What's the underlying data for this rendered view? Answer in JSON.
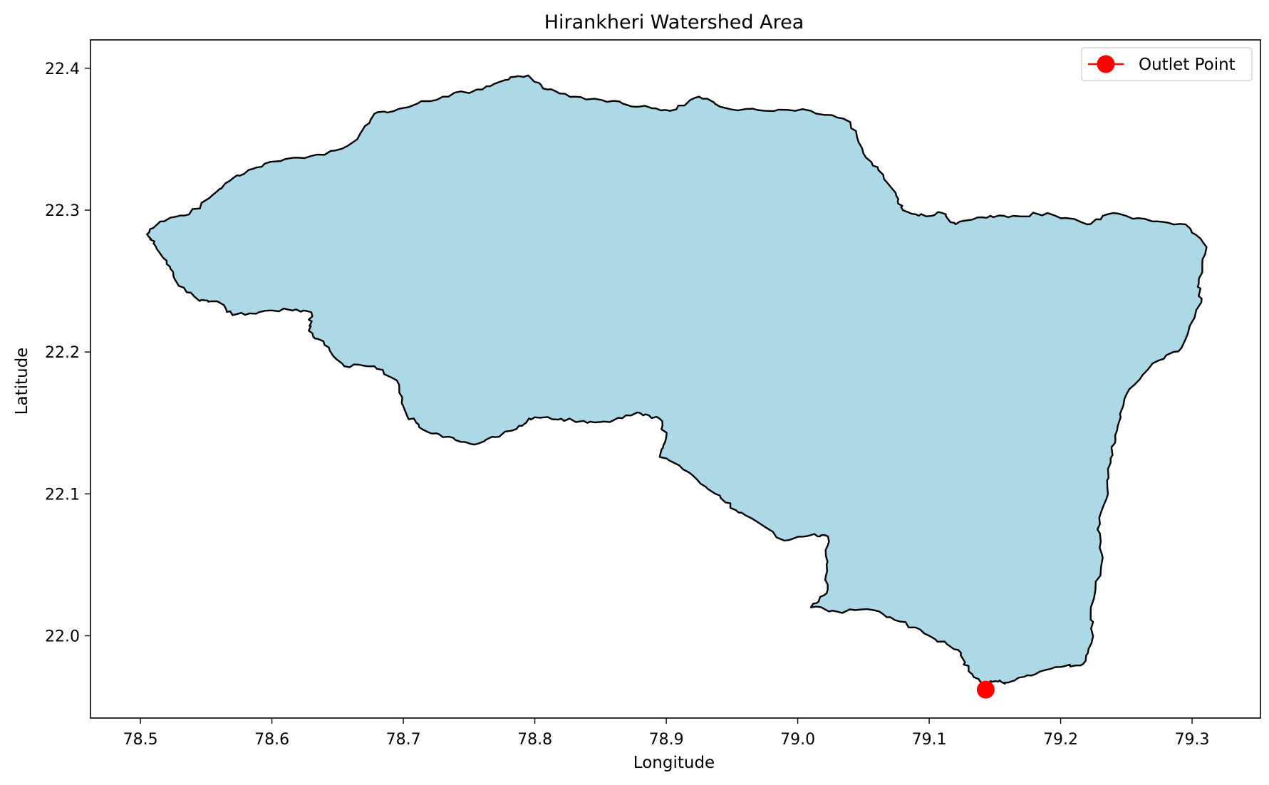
{
  "chart_data": {
    "type": "map",
    "title": "Hirankheri Watershed Area",
    "xlabel": "Longitude",
    "ylabel": "Latitude",
    "xlim": [
      78.462,
      79.352
    ],
    "ylim": [
      21.942,
      22.42
    ],
    "x_ticks": [
      78.5,
      78.6,
      78.7,
      78.8,
      78.9,
      79.0,
      79.1,
      79.2,
      79.3
    ],
    "x_tick_labels": [
      "78.5",
      "78.6",
      "78.7",
      "78.8",
      "78.9",
      "79.0",
      "79.1",
      "79.2",
      "79.3"
    ],
    "y_ticks": [
      22.0,
      22.1,
      22.2,
      22.3,
      22.4
    ],
    "y_tick_labels": [
      "22.0",
      "22.1",
      "22.2",
      "22.3",
      "22.4"
    ],
    "grid": false,
    "legend": {
      "position": "top-right",
      "entries": [
        {
          "label": "Outlet Point",
          "color": "#ff0000",
          "marker": "circle-line"
        }
      ]
    },
    "watershed": {
      "name": "Hirankheri Watershed",
      "fill_color": "#add8e6",
      "edge_color": "#000000",
      "boundary": [
        [
          78.505,
          22.283
        ],
        [
          78.515,
          22.292
        ],
        [
          78.537,
          22.297
        ],
        [
          78.558,
          22.313
        ],
        [
          78.571,
          22.323
        ],
        [
          78.588,
          22.33
        ],
        [
          78.61,
          22.336
        ],
        [
          78.64,
          22.339
        ],
        [
          78.665,
          22.35
        ],
        [
          78.678,
          22.368
        ],
        [
          78.7,
          22.372
        ],
        [
          78.73,
          22.38
        ],
        [
          78.76,
          22.385
        ],
        [
          78.78,
          22.392
        ],
        [
          78.795,
          22.395
        ],
        [
          78.81,
          22.385
        ],
        [
          78.83,
          22.38
        ],
        [
          78.86,
          22.377
        ],
        [
          78.88,
          22.373
        ],
        [
          78.903,
          22.37
        ],
        [
          78.925,
          22.38
        ],
        [
          78.945,
          22.372
        ],
        [
          78.975,
          22.37
        ],
        [
          79.01,
          22.37
        ],
        [
          79.04,
          22.362
        ],
        [
          79.05,
          22.34
        ],
        [
          79.065,
          22.325
        ],
        [
          79.075,
          22.31
        ],
        [
          79.08,
          22.3
        ],
        [
          79.092,
          22.296
        ],
        [
          79.11,
          22.298
        ],
        [
          79.12,
          22.29
        ],
        [
          79.14,
          22.295
        ],
        [
          79.16,
          22.295
        ],
        [
          79.19,
          22.298
        ],
        [
          79.22,
          22.29
        ],
        [
          79.24,
          22.298
        ],
        [
          79.27,
          22.292
        ],
        [
          79.295,
          22.29
        ],
        [
          79.311,
          22.274
        ],
        [
          79.305,
          22.248
        ],
        [
          79.307,
          22.235
        ],
        [
          79.292,
          22.203
        ],
        [
          79.27,
          22.192
        ],
        [
          79.25,
          22.17
        ],
        [
          79.243,
          22.145
        ],
        [
          79.238,
          22.125
        ],
        [
          79.236,
          22.1
        ],
        [
          79.228,
          22.075
        ],
        [
          79.232,
          22.055
        ],
        [
          79.223,
          22.02
        ],
        [
          79.224,
          21.997
        ],
        [
          79.217,
          21.98
        ],
        [
          79.2,
          21.978
        ],
        [
          79.178,
          21.972
        ],
        [
          79.16,
          21.967
        ],
        [
          79.15,
          21.968
        ],
        [
          79.143,
          21.965
        ],
        [
          79.13,
          21.975
        ],
        [
          79.122,
          21.99
        ],
        [
          79.1,
          22.0
        ],
        [
          79.078,
          22.01
        ],
        [
          79.058,
          22.018
        ],
        [
          79.03,
          22.017
        ],
        [
          79.01,
          22.02
        ],
        [
          79.022,
          22.03
        ],
        [
          79.022,
          22.05
        ],
        [
          79.023,
          22.07
        ],
        [
          79.01,
          22.071
        ],
        [
          78.99,
          22.067
        ],
        [
          78.96,
          22.085
        ],
        [
          78.945,
          22.094
        ],
        [
          78.93,
          22.105
        ],
        [
          78.91,
          22.12
        ],
        [
          78.895,
          22.126
        ],
        [
          78.9,
          22.14
        ],
        [
          78.895,
          22.153
        ],
        [
          78.88,
          22.157
        ],
        [
          78.86,
          22.152
        ],
        [
          78.84,
          22.15
        ],
        [
          78.82,
          22.153
        ],
        [
          78.8,
          22.154
        ],
        [
          78.788,
          22.148
        ],
        [
          78.77,
          22.14
        ],
        [
          78.752,
          22.135
        ],
        [
          78.73,
          22.14
        ],
        [
          78.712,
          22.147
        ],
        [
          78.702,
          22.157
        ],
        [
          78.695,
          22.18
        ],
        [
          78.678,
          22.19
        ],
        [
          78.655,
          22.19
        ],
        [
          78.64,
          22.205
        ],
        [
          78.628,
          22.215
        ],
        [
          78.63,
          22.228
        ],
        [
          78.612,
          22.23
        ],
        [
          78.59,
          22.228
        ],
        [
          78.57,
          22.226
        ],
        [
          78.56,
          22.235
        ],
        [
          78.545,
          22.236
        ],
        [
          78.527,
          22.25
        ],
        [
          78.52,
          22.262
        ],
        [
          78.512,
          22.274
        ]
      ]
    },
    "outlet_point": {
      "label": "Outlet Point",
      "lon": 79.143,
      "lat": 21.962,
      "color": "#ff0000"
    }
  }
}
